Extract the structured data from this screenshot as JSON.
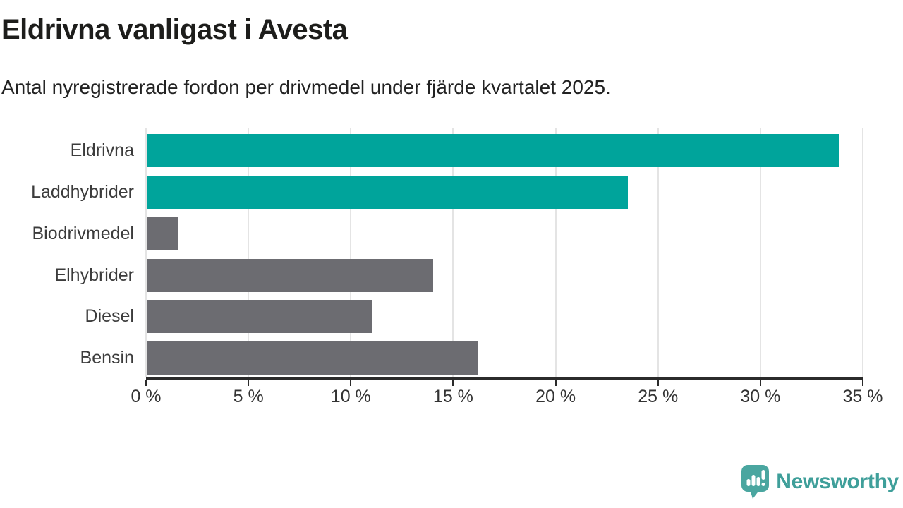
{
  "title": "Eldrivna vanligast i Avesta",
  "subtitle": "Antal nyregistrerade fordon per drivmedel under fjärde kvartalet 2025.",
  "chart_data": {
    "type": "bar",
    "orientation": "horizontal",
    "categories": [
      "Eldrivna",
      "Laddhybrider",
      "Biodrivmedel",
      "Elhybrider",
      "Diesel",
      "Bensin"
    ],
    "values": [
      33.8,
      23.5,
      1.5,
      14.0,
      11.0,
      16.2
    ],
    "unit": "%",
    "colors": [
      "#00a49b",
      "#00a49b",
      "#6c6c71",
      "#6c6c71",
      "#6c6c71",
      "#6c6c71"
    ],
    "highlight_color": "#00a49b",
    "default_color": "#6c6c71",
    "xlim": [
      0,
      35
    ],
    "x_tick_values": [
      0,
      5,
      10,
      15,
      20,
      25,
      30,
      35
    ],
    "x_tick_labels": [
      "0 %",
      "5 %",
      "10 %",
      "15 %",
      "20 %",
      "25 %",
      "30 %",
      "35 %"
    ],
    "grid": true,
    "legend": false,
    "title": "Eldrivna vanligast i Avesta",
    "xlabel": "",
    "ylabel": ""
  },
  "footer": {
    "brand": "Newsworthy",
    "brand_color": "#3f9f9a",
    "icon_color": "#4aa6a0",
    "logo_icon": "speech-bubble-bar-chart-icon"
  }
}
